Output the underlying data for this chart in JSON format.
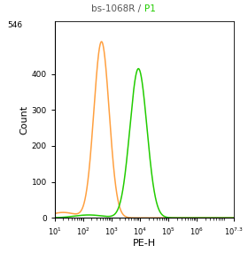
{
  "title_part1": "bs-1068R / ",
  "title_part2": "P1",
  "title_color1": "#555555",
  "title_color2": "#22cc00",
  "xlabel": "PE-H",
  "ylabel": "Count",
  "xlim": [
    10,
    19952623
  ],
  "ylim": [
    0,
    546
  ],
  "yticks": [
    0,
    100,
    200,
    300,
    400
  ],
  "ytick_top": 546,
  "orange_peak_log10": 2.65,
  "orange_peak_height": 490,
  "orange_sigma_log10": 0.27,
  "green_peak_log10": 3.95,
  "green_peak_height": 415,
  "green_sigma_log10": 0.3,
  "orange_color": "#FFA040",
  "green_color": "#22cc00",
  "bg_color": "#ffffff",
  "line_width": 1.1
}
